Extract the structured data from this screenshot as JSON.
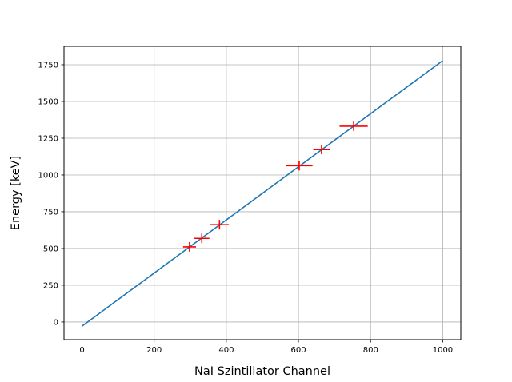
{
  "chart_data": {
    "type": "scatter",
    "xlabel": "NaI Szintillator Channel",
    "ylabel": "Energy [keV]",
    "xlim": [
      -50,
      1050
    ],
    "ylim": [
      -120,
      1875
    ],
    "xticks": [
      0,
      200,
      400,
      600,
      800,
      1000
    ],
    "yticks": [
      0,
      250,
      500,
      750,
      1000,
      1250,
      1500,
      1750
    ],
    "grid": true,
    "fit_line": {
      "x": [
        0,
        1000
      ],
      "y": [
        -28,
        1778
      ],
      "color": "#1f77b4"
    },
    "points": [
      {
        "x": 298,
        "y": 511,
        "xerr": 18
      },
      {
        "x": 332,
        "y": 569,
        "xerr": 21
      },
      {
        "x": 381,
        "y": 662,
        "xerr": 26
      },
      {
        "x": 602,
        "y": 1063,
        "xerr": 37
      },
      {
        "x": 664,
        "y": 1173,
        "xerr": 23
      },
      {
        "x": 753,
        "y": 1332,
        "xerr": 39
      }
    ],
    "marker_color": "#ff0000",
    "grid_color": "#b0b0b0"
  }
}
